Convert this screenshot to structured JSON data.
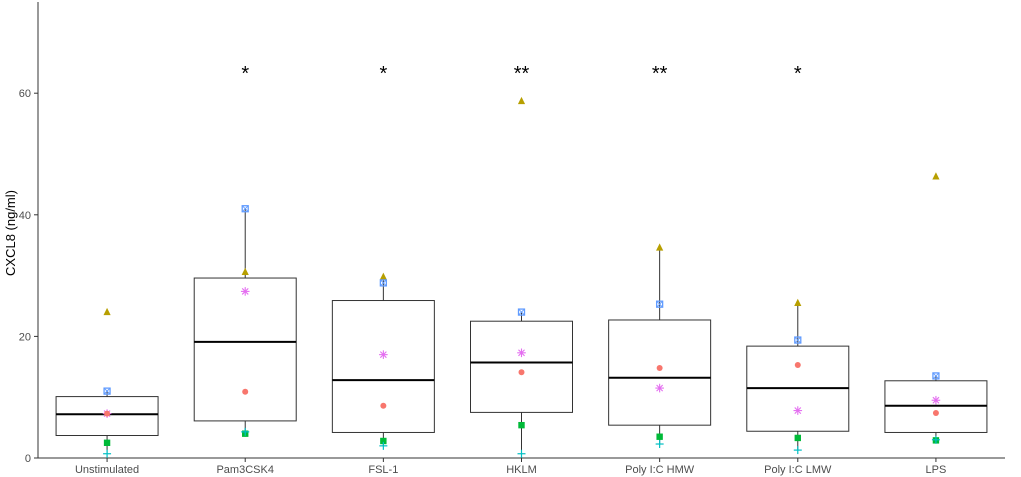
{
  "chart_data": {
    "type": "boxplot",
    "ylabel": "CXCL8 (ng/ml)",
    "xlabel": "",
    "ylim": [
      0,
      75
    ],
    "yticks": [
      0,
      20,
      40,
      60
    ],
    "grid": false,
    "colors": {
      "triangle": "#b79f00",
      "square_open": "#619cff",
      "asterisk": "#e46ef0",
      "circle": "#f8766d",
      "square_filled": "#00ba38",
      "plus": "#00bfc4"
    },
    "categories": [
      {
        "label": "Unstimulated",
        "significance": "",
        "box": {
          "whisker_low": 0.7,
          "q1": 3.7,
          "median": 7.2,
          "q3": 10.1,
          "whisker_high": 11.0
        },
        "points": [
          {
            "shape": "triangle",
            "value": 24.0
          },
          {
            "shape": "square_open",
            "value": 11.0
          },
          {
            "shape": "asterisk",
            "value": 7.3
          },
          {
            "shape": "circle",
            "value": 7.3
          },
          {
            "shape": "square_filled",
            "value": 2.5
          },
          {
            "shape": "plus",
            "value": 0.7
          }
        ]
      },
      {
        "label": "Pam3CSK4",
        "significance": "*",
        "box": {
          "whisker_low": 4.0,
          "q1": 6.1,
          "median": 19.1,
          "q3": 29.6,
          "whisker_high": 41.0
        },
        "points": [
          {
            "shape": "square_open",
            "value": 41.0
          },
          {
            "shape": "triangle",
            "value": 30.6
          },
          {
            "shape": "asterisk",
            "value": 27.4
          },
          {
            "shape": "circle",
            "value": 10.9
          },
          {
            "shape": "square_filled",
            "value": 4.0
          },
          {
            "shape": "plus",
            "value": 4.3
          }
        ]
      },
      {
        "label": "FSL-1",
        "significance": "*",
        "box": {
          "whisker_low": 2.0,
          "q1": 4.2,
          "median": 12.8,
          "q3": 25.9,
          "whisker_high": 29.8
        },
        "points": [
          {
            "shape": "triangle",
            "value": 29.8
          },
          {
            "shape": "square_open",
            "value": 28.8
          },
          {
            "shape": "asterisk",
            "value": 17.0
          },
          {
            "shape": "circle",
            "value": 8.6
          },
          {
            "shape": "square_filled",
            "value": 2.8
          },
          {
            "shape": "plus",
            "value": 2.0
          }
        ]
      },
      {
        "label": "HKLM",
        "significance": "**",
        "box": {
          "whisker_low": 0.7,
          "q1": 7.5,
          "median": 15.7,
          "q3": 22.5,
          "whisker_high": 24.0
        },
        "points": [
          {
            "shape": "triangle",
            "value": 58.7
          },
          {
            "shape": "square_open",
            "value": 24.0
          },
          {
            "shape": "asterisk",
            "value": 17.3
          },
          {
            "shape": "circle",
            "value": 14.1
          },
          {
            "shape": "square_filled",
            "value": 5.4
          },
          {
            "shape": "plus",
            "value": 0.7
          }
        ]
      },
      {
        "label": "Poly I:C HMW",
        "significance": "**",
        "box": {
          "whisker_low": 2.3,
          "q1": 5.4,
          "median": 13.2,
          "q3": 22.7,
          "whisker_high": 34.6
        },
        "points": [
          {
            "shape": "triangle",
            "value": 34.6
          },
          {
            "shape": "square_open",
            "value": 25.3
          },
          {
            "shape": "circle",
            "value": 14.8
          },
          {
            "shape": "asterisk",
            "value": 11.5
          },
          {
            "shape": "square_filled",
            "value": 3.5
          },
          {
            "shape": "plus",
            "value": 2.3
          }
        ]
      },
      {
        "label": "Poly I:C LMW",
        "significance": "*",
        "box": {
          "whisker_low": 1.3,
          "q1": 4.4,
          "median": 11.5,
          "q3": 18.4,
          "whisker_high": 25.5
        },
        "points": [
          {
            "shape": "triangle",
            "value": 25.5
          },
          {
            "shape": "square_open",
            "value": 19.4
          },
          {
            "shape": "circle",
            "value": 15.3
          },
          {
            "shape": "asterisk",
            "value": 7.8
          },
          {
            "shape": "square_filled",
            "value": 3.3
          },
          {
            "shape": "plus",
            "value": 1.3
          }
        ]
      },
      {
        "label": "LPS",
        "significance": "",
        "box": {
          "whisker_low": 2.8,
          "q1": 4.2,
          "median": 8.6,
          "q3": 12.7,
          "whisker_high": 13.5
        },
        "points": [
          {
            "shape": "triangle",
            "value": 46.3
          },
          {
            "shape": "square_open",
            "value": 13.5
          },
          {
            "shape": "asterisk",
            "value": 9.5
          },
          {
            "shape": "circle",
            "value": 7.4
          },
          {
            "shape": "square_filled",
            "value": 2.9
          },
          {
            "shape": "plus",
            "value": 3.0
          }
        ]
      }
    ]
  }
}
